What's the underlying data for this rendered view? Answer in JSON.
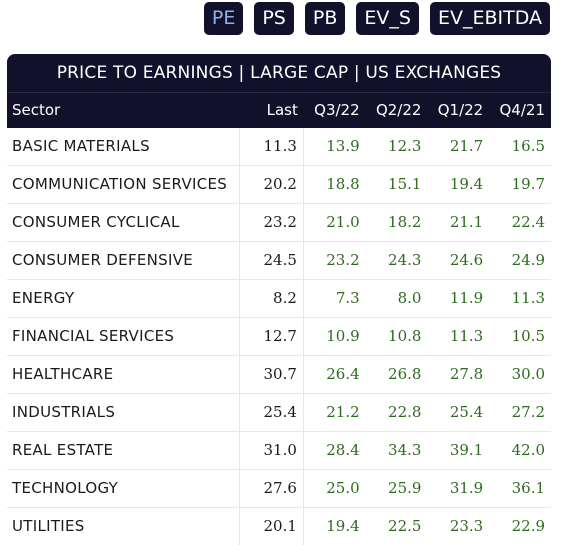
{
  "toggles": [
    {
      "label": "PE",
      "active": true
    },
    {
      "label": "PS",
      "active": false
    },
    {
      "label": "PB",
      "active": false
    },
    {
      "label": "EV_S",
      "active": false
    },
    {
      "label": "EV_EBITDA",
      "active": false
    }
  ],
  "table": {
    "title": "PRICE TO EARNINGS | LARGE CAP | US EXCHANGES",
    "headers": {
      "sector": "Sector",
      "last": "Last",
      "q3_22": "Q3/22",
      "q2_22": "Q2/22",
      "q1_22": "Q1/22",
      "q4_21": "Q4/21"
    },
    "rows": [
      {
        "sector": "BASIC MATERIALS",
        "last": "11.3",
        "q3_22": "13.9",
        "q2_22": "12.3",
        "q1_22": "21.7",
        "q4_21": "16.5"
      },
      {
        "sector": "COMMUNICATION SERVICES",
        "last": "20.2",
        "q3_22": "18.8",
        "q2_22": "15.1",
        "q1_22": "19.4",
        "q4_21": "19.7"
      },
      {
        "sector": "CONSUMER CYCLICAL",
        "last": "23.2",
        "q3_22": "21.0",
        "q2_22": "18.2",
        "q1_22": "21.1",
        "q4_21": "22.4"
      },
      {
        "sector": "CONSUMER DEFENSIVE",
        "last": "24.5",
        "q3_22": "23.2",
        "q2_22": "24.3",
        "q1_22": "24.6",
        "q4_21": "24.9"
      },
      {
        "sector": "ENERGY",
        "last": "8.2",
        "q3_22": "7.3",
        "q2_22": "8.0",
        "q1_22": "11.9",
        "q4_21": "11.3"
      },
      {
        "sector": "FINANCIAL SERVICES",
        "last": "12.7",
        "q3_22": "10.9",
        "q2_22": "10.8",
        "q1_22": "11.3",
        "q4_21": "10.5"
      },
      {
        "sector": "HEALTHCARE",
        "last": "30.7",
        "q3_22": "26.4",
        "q2_22": "26.8",
        "q1_22": "27.8",
        "q4_21": "30.0"
      },
      {
        "sector": "INDUSTRIALS",
        "last": "25.4",
        "q3_22": "21.2",
        "q2_22": "22.8",
        "q1_22": "25.4",
        "q4_21": "27.2"
      },
      {
        "sector": "REAL ESTATE",
        "last": "31.0",
        "q3_22": "28.4",
        "q2_22": "34.3",
        "q1_22": "39.1",
        "q4_21": "42.0"
      },
      {
        "sector": "TECHNOLOGY",
        "last": "27.6",
        "q3_22": "25.0",
        "q2_22": "25.9",
        "q1_22": "31.9",
        "q4_21": "36.1"
      },
      {
        "sector": "UTILITIES",
        "last": "20.1",
        "q3_22": "19.4",
        "q2_22": "22.5",
        "q1_22": "23.3",
        "q4_21": "22.9"
      }
    ]
  },
  "colors": {
    "header_bg": "#12112b",
    "active_toggle_text": "#8fb2e8",
    "history_value_text": "#2d6b1e"
  }
}
